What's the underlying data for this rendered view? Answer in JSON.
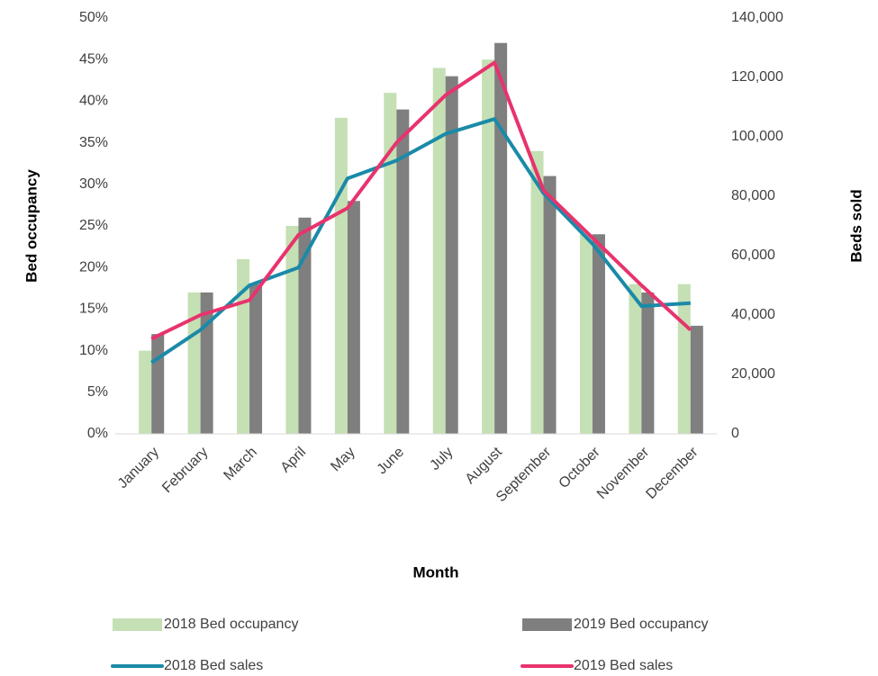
{
  "chart_data": {
    "type": "bar_line",
    "xlabel": "Month",
    "ylabel": "Bed  occupancy",
    "y2label": "Beds  sold",
    "categories": [
      "January",
      "February",
      "March",
      "April",
      "May",
      "June",
      "July",
      "August",
      "September",
      "October",
      "November",
      "December"
    ],
    "series": [
      {
        "name": "2018 Bed occupancy",
        "type": "bar",
        "color": "#c5e0b4",
        "values": [
          10,
          17,
          21,
          25,
          38,
          41,
          44,
          45,
          34,
          24,
          18,
          18
        ]
      },
      {
        "name": "2019 Bed occupancy",
        "type": "bar",
        "color": "#7f7f7f",
        "values": [
          12,
          17,
          18,
          26,
          28,
          39,
          43,
          47,
          31,
          24,
          17,
          13
        ]
      },
      {
        "name": "2018 Bed sales",
        "type": "line",
        "axis": "y2",
        "color": "#1a8aa8",
        "values": [
          24000,
          35000,
          50000,
          56000,
          86000,
          92000,
          101000,
          106000,
          81000,
          64000,
          43000,
          44000
        ]
      },
      {
        "name": "2019 Bed sales",
        "type": "line",
        "axis": "y2",
        "color": "#e8336d",
        "values": [
          32000,
          40000,
          45000,
          67000,
          76000,
          98000,
          114000,
          125000,
          82000,
          66000,
          50000,
          35000
        ]
      }
    ],
    "ylim": [
      0,
      50
    ],
    "yticks": [
      {
        "value": 0,
        "label": "0%"
      },
      {
        "value": 5,
        "label": "5%"
      },
      {
        "value": 10,
        "label": "10%"
      },
      {
        "value": 15,
        "label": "15%"
      },
      {
        "value": 20,
        "label": "20%"
      },
      {
        "value": 25,
        "label": "25%"
      },
      {
        "value": 30,
        "label": "30%"
      },
      {
        "value": 35,
        "label": "35%"
      },
      {
        "value": 40,
        "label": "40%"
      },
      {
        "value": 45,
        "label": "45%"
      },
      {
        "value": 50,
        "label": "50%"
      }
    ],
    "y2lim": [
      0,
      140000
    ],
    "y2ticks": [
      0,
      {
        "value": 20000,
        "label": "20,000"
      },
      {
        "value": 40000,
        "label": "40,000"
      },
      {
        "value": 60000,
        "label": "60,000"
      },
      {
        "value": 80000,
        "label": "80,000"
      },
      {
        "value": 100000,
        "label": "100,000"
      },
      {
        "value": 120000,
        "label": "120,000"
      },
      {
        "value": 140000,
        "label": "140,000"
      }
    ],
    "grid": false
  }
}
